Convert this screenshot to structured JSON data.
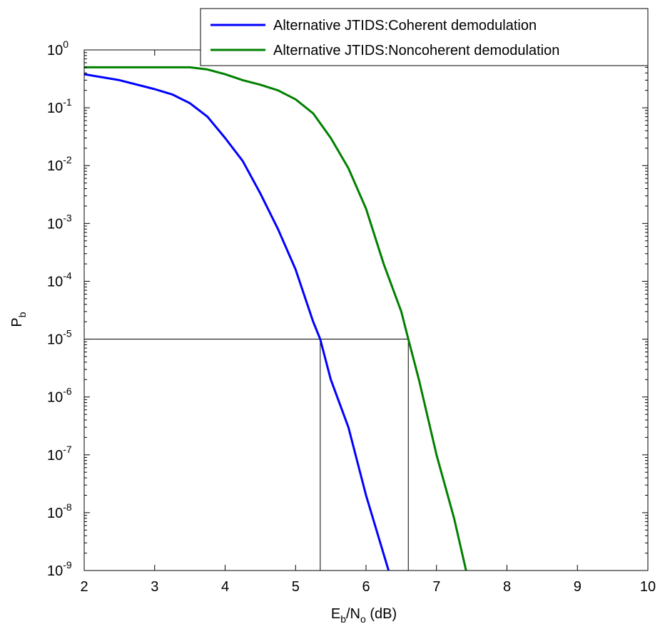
{
  "chart_data": {
    "type": "line",
    "xlabel": {
      "main": "E",
      "sub1": "b",
      "mid": "/N",
      "sub2": "o",
      "tail": " (dB)"
    },
    "ylabel": {
      "main": "P",
      "sub": "b"
    },
    "xlim": [
      2,
      10
    ],
    "ylim_exponent": [
      -9,
      0
    ],
    "yscale": "log",
    "grid": false,
    "legend_position": "top-right",
    "x_ticks": [
      "2",
      "3",
      "4",
      "5",
      "6",
      "7",
      "8",
      "9",
      "10"
    ],
    "y_ticks": [
      {
        "base": "10",
        "exp": "0"
      },
      {
        "base": "10",
        "exp": "-1"
      },
      {
        "base": "10",
        "exp": "-2"
      },
      {
        "base": "10",
        "exp": "-3"
      },
      {
        "base": "10",
        "exp": "-4"
      },
      {
        "base": "10",
        "exp": "-5"
      },
      {
        "base": "10",
        "exp": "-6"
      },
      {
        "base": "10",
        "exp": "-7"
      },
      {
        "base": "10",
        "exp": "-8"
      },
      {
        "base": "10",
        "exp": "-9"
      }
    ],
    "series": [
      {
        "name": "Alternative JTIDS:Coherent demodulation",
        "color": "#0000ff",
        "x": [
          2.0,
          2.5,
          3.0,
          3.25,
          3.5,
          3.75,
          4.0,
          4.25,
          4.5,
          4.75,
          5.0,
          5.25,
          5.35,
          5.5,
          5.75,
          6.0,
          6.32
        ],
        "y": [
          0.38,
          0.3,
          0.21,
          0.17,
          0.12,
          0.07,
          0.03,
          0.012,
          0.0033,
          0.0008,
          0.00016,
          2e-05,
          1e-05,
          2e-06,
          3e-07,
          2e-08,
          1e-09
        ]
      },
      {
        "name": "Alternative JTIDS:Noncoherent demodulation",
        "color": "#008000",
        "x": [
          2.0,
          3.0,
          3.5,
          3.75,
          4.0,
          4.25,
          4.5,
          4.75,
          5.0,
          5.25,
          5.5,
          5.75,
          6.0,
          6.25,
          6.5,
          6.6,
          6.75,
          7.0,
          7.25,
          7.42
        ],
        "y": [
          0.5,
          0.5,
          0.5,
          0.46,
          0.38,
          0.3,
          0.25,
          0.2,
          0.14,
          0.08,
          0.03,
          0.009,
          0.0018,
          0.0002,
          3e-05,
          1e-05,
          2e-06,
          1e-07,
          8e-09,
          1e-09
        ]
      }
    ],
    "reference_lines": {
      "y": 1e-05,
      "x1": 5.35,
      "x2": 6.6
    }
  }
}
